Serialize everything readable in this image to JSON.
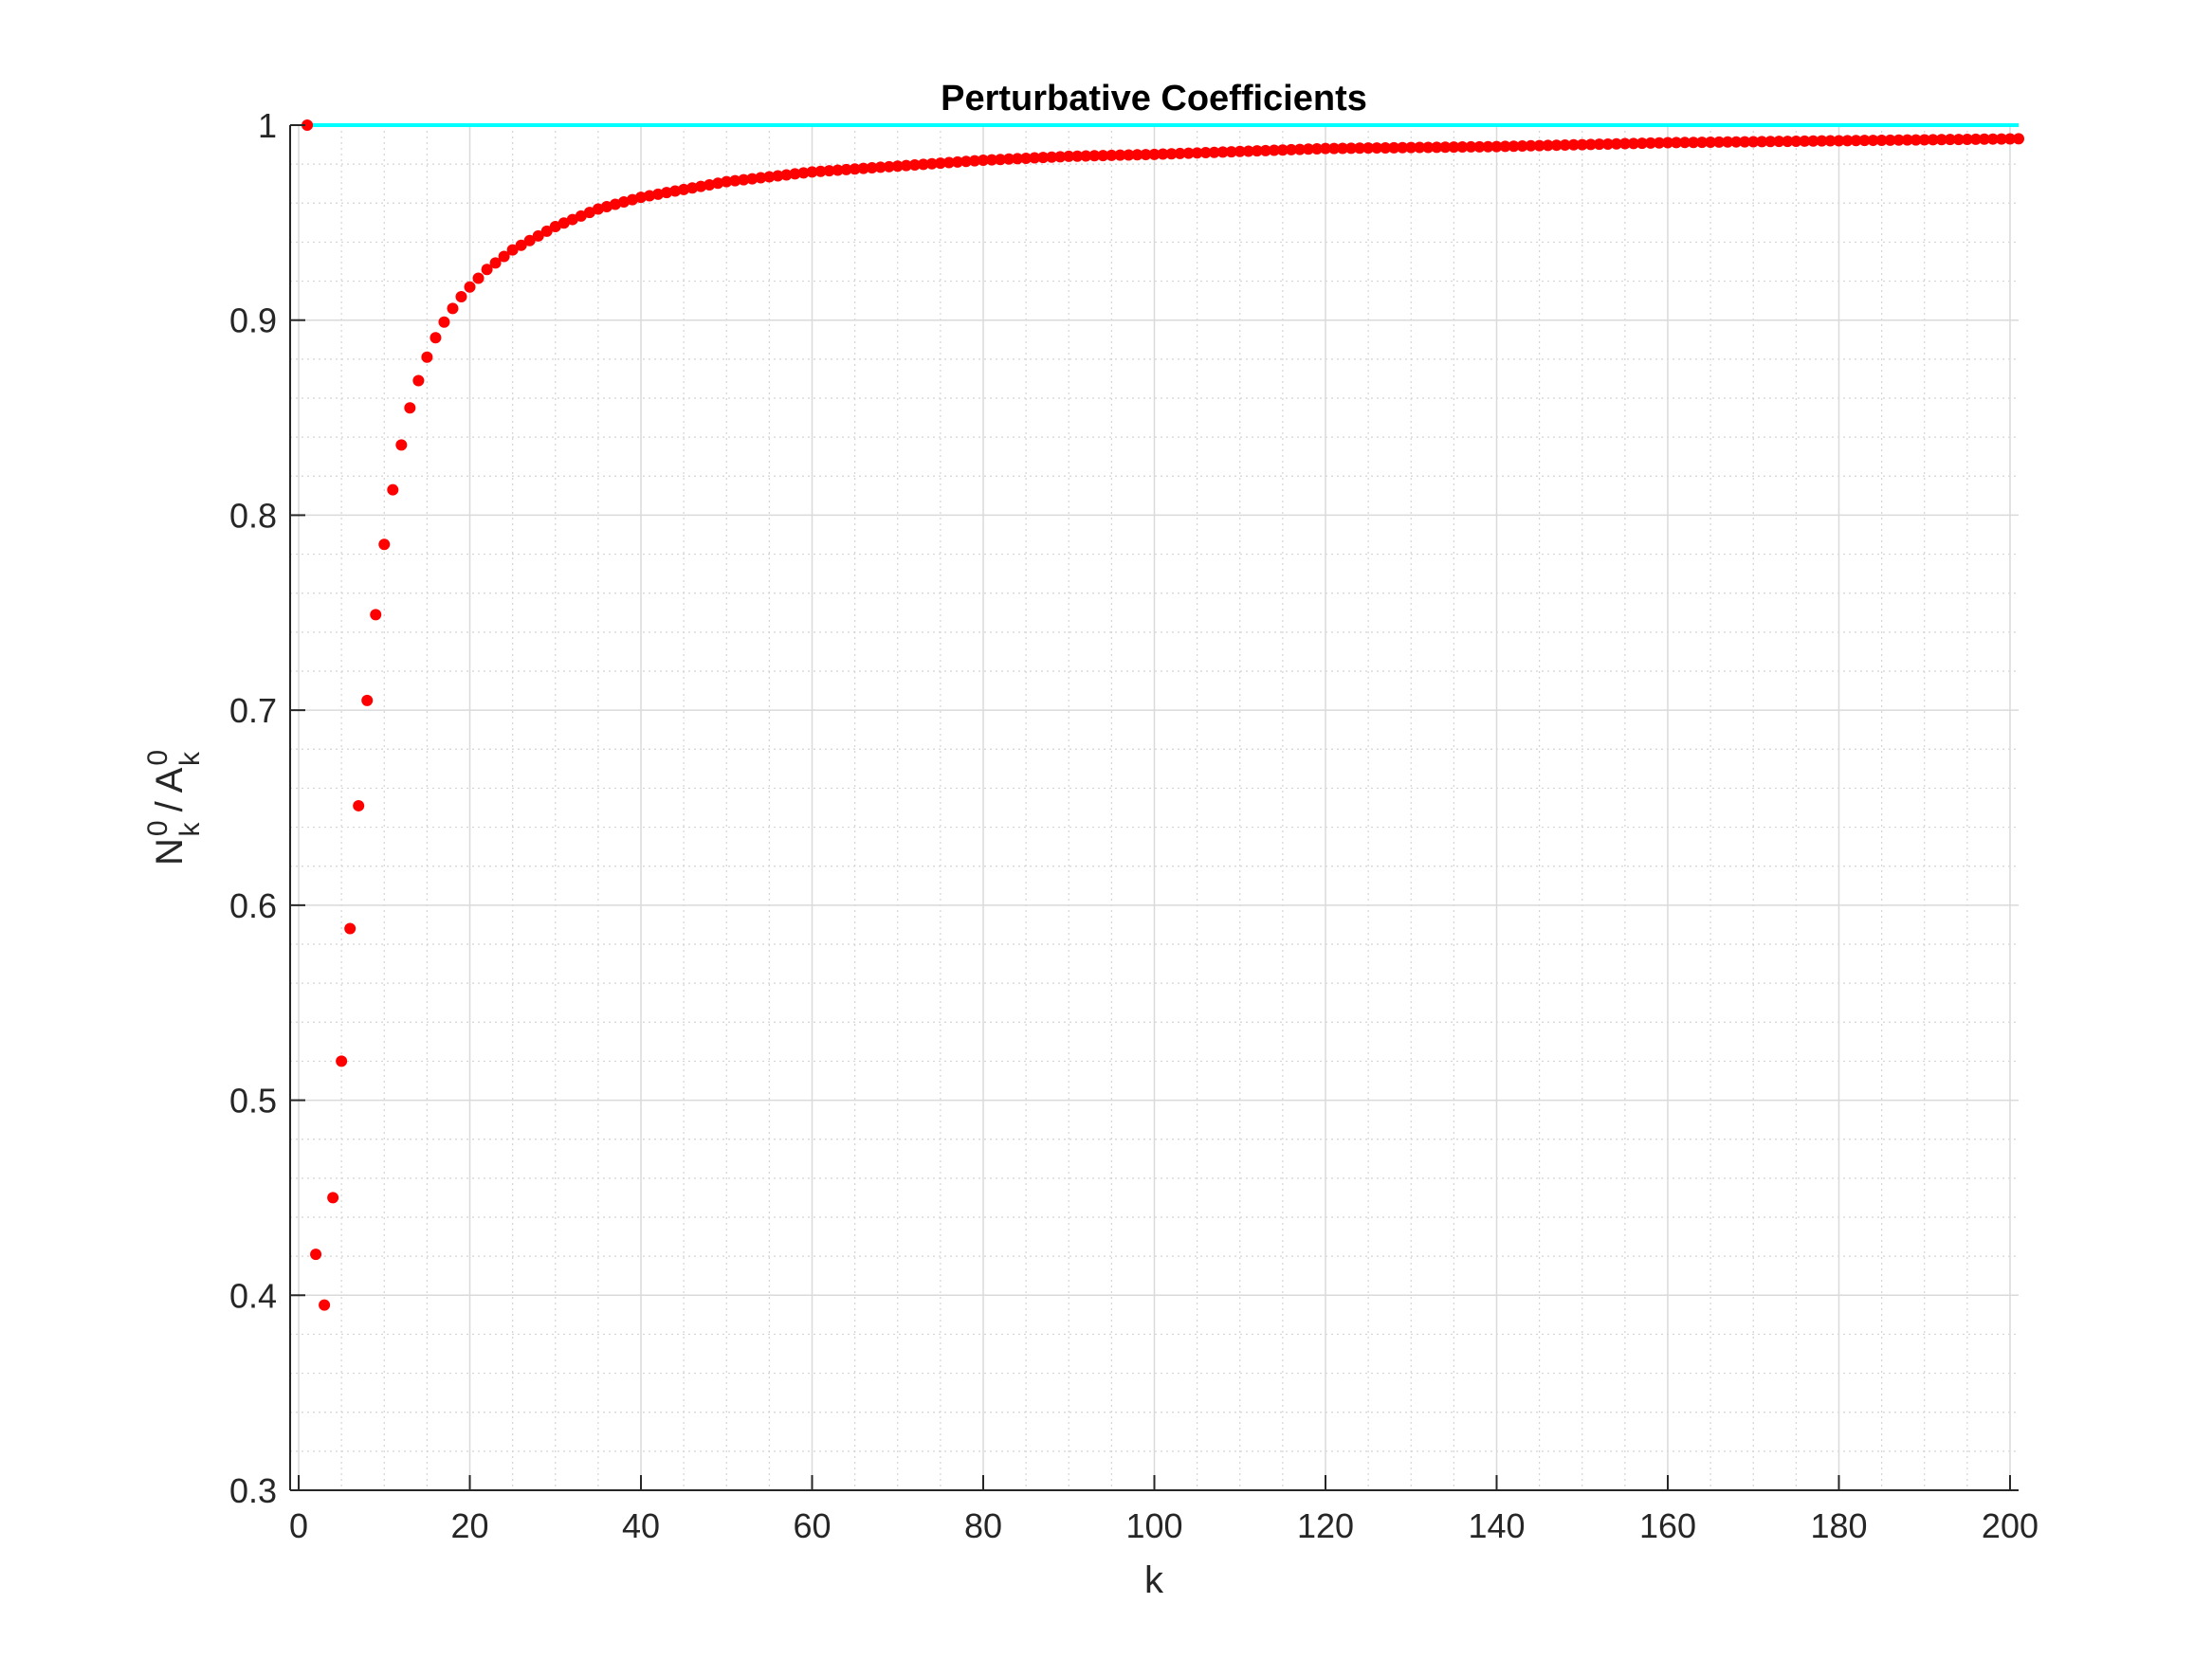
{
  "chart_data": {
    "type": "scatter",
    "title": "Perturbative Coefficients",
    "xlabel": "k",
    "ylabel": {
      "parts": [
        "N",
        "k",
        "0",
        " / A",
        "k",
        "0"
      ]
    },
    "xlim": [
      -1,
      201
    ],
    "ylim": [
      0.3,
      1.0
    ],
    "xticks": [
      0,
      20,
      40,
      60,
      80,
      100,
      120,
      140,
      160,
      180,
      200
    ],
    "yticks": [
      0.3,
      0.4,
      0.5,
      0.6,
      0.7,
      0.8,
      0.9,
      1.0
    ],
    "xtick_labels": [
      "0",
      "20",
      "40",
      "60",
      "80",
      "100",
      "120",
      "140",
      "160",
      "180",
      "200"
    ],
    "ytick_labels": [
      "0.3",
      "0.4",
      "0.5",
      "0.6",
      "0.7",
      "0.8",
      "0.9",
      "1"
    ],
    "grid": true,
    "minor_grid": true,
    "series": [
      {
        "type": "scatter",
        "color": "#ff0000",
        "points": [
          [
            1,
            1.0
          ],
          [
            2,
            0.421
          ],
          [
            3,
            0.395
          ],
          [
            4,
            0.45
          ],
          [
            5,
            0.52
          ],
          [
            6,
            0.588
          ],
          [
            7,
            0.651
          ],
          [
            8,
            0.705
          ],
          [
            9,
            0.749
          ],
          [
            10,
            0.785
          ],
          [
            11,
            0.813
          ],
          [
            12,
            0.836
          ],
          [
            13,
            0.855
          ],
          [
            14,
            0.869
          ],
          [
            15,
            0.881
          ],
          [
            16,
            0.891
          ],
          [
            17,
            0.899
          ],
          [
            18,
            0.906
          ],
          [
            19,
            0.912
          ],
          [
            20,
            0.917
          ],
          [
            22,
            0.926
          ],
          [
            25,
            0.936
          ],
          [
            30,
            0.948
          ],
          [
            35,
            0.957
          ],
          [
            40,
            0.963
          ],
          [
            45,
            0.967
          ],
          [
            50,
            0.971
          ],
          [
            60,
            0.976
          ],
          [
            70,
            0.979
          ],
          [
            80,
            0.982
          ],
          [
            90,
            0.984
          ],
          [
            100,
            0.985
          ],
          [
            120,
            0.988
          ],
          [
            140,
            0.989
          ],
          [
            160,
            0.991
          ],
          [
            180,
            0.992
          ],
          [
            201,
            0.993
          ]
        ]
      },
      {
        "type": "line",
        "color": "#00ffff",
        "x": [
          1,
          201
        ],
        "y": [
          1.0,
          1.0
        ]
      }
    ]
  }
}
